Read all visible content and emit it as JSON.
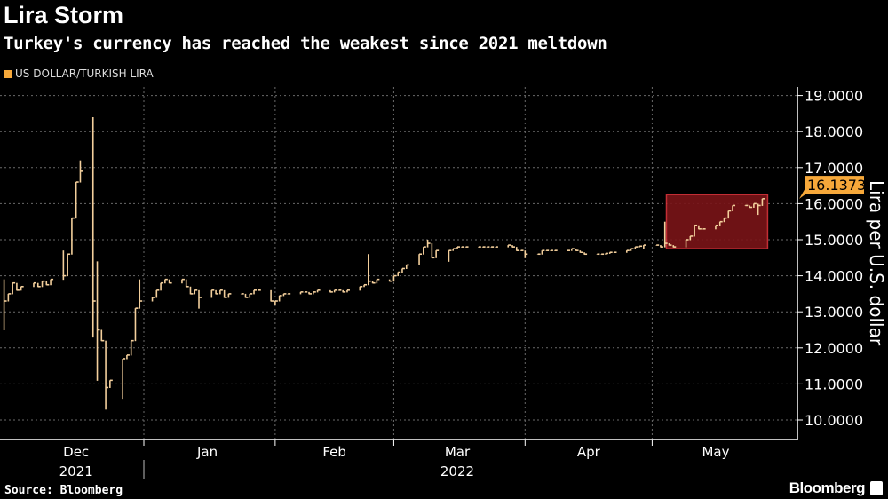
{
  "chart_data": {
    "type": "bar",
    "subtype": "ohlc",
    "title": "Lira Storm",
    "subtitle": "Turkey's currency has reached the weakest since 2021 meltdown",
    "legend": [
      "US DOLLAR/TURKISH LIRA"
    ],
    "legend_placement": "top-left",
    "ylabel": "Lira per U.S. dollar",
    "ylim": [
      9.75,
      19.25
    ],
    "yticks": [
      "10.0000",
      "11.0000",
      "12.0000",
      "13.0000",
      "14.0000",
      "15.0000",
      "16.0000",
      "17.0000",
      "18.0000",
      "19.0000"
    ],
    "ytick_values": [
      10,
      11,
      12,
      13,
      14,
      15,
      16,
      17,
      18,
      19
    ],
    "x_start_date": "2021-11-29",
    "x_end_date": "2022-05-27",
    "xticks": [
      {
        "label": "Dec",
        "date": "2021-12-16"
      },
      {
        "label": "Jan",
        "date": "2022-01-16"
      },
      {
        "label": "Feb",
        "date": "2022-02-15"
      },
      {
        "label": "Mar",
        "date": "2022-03-16"
      },
      {
        "label": "Apr",
        "date": "2022-04-16"
      },
      {
        "label": "May",
        "date": "2022-05-16"
      }
    ],
    "year_labels": [
      {
        "label": "2021",
        "date": "2021-12-16"
      },
      {
        "label": "2022",
        "date": "2022-03-16"
      }
    ],
    "month_boundaries": [
      "2022-01-01",
      "2022-02-01",
      "2022-03-01",
      "2022-04-01",
      "2022-05-01"
    ],
    "grid": true,
    "series_note": "weekday closes starting x_start_date",
    "closes": [
      13.3,
      13.5,
      13.8,
      13.6,
      13.7,
      13.8,
      13.7,
      13.85,
      13.75,
      13.9,
      14.0,
      14.6,
      15.6,
      16.6,
      16.9,
      13.3,
      12.5,
      12.2,
      10.9,
      11.1,
      11.7,
      11.8,
      12.2,
      13.1,
      13.3,
      13.4,
      13.6,
      13.8,
      13.9,
      13.8,
      13.9,
      13.7,
      13.5,
      13.6,
      13.4,
      13.6,
      13.5,
      13.6,
      13.4,
      13.5,
      13.5,
      13.4,
      13.5,
      13.6,
      13.6,
      13.3,
      13.3,
      13.45,
      13.5,
      13.5,
      13.55,
      13.55,
      13.5,
      13.55,
      13.6,
      13.55,
      13.6,
      13.6,
      13.55,
      13.6,
      13.7,
      13.75,
      13.85,
      13.8,
      13.9,
      13.85,
      14.0,
      14.1,
      14.2,
      14.3,
      14.6,
      14.8,
      14.9,
      14.5,
      14.7,
      14.7,
      14.75,
      14.8,
      14.8,
      14.8,
      14.8,
      14.8,
      14.8,
      14.8,
      14.8,
      14.85,
      14.8,
      14.7,
      14.7,
      14.6,
      14.6,
      14.7,
      14.7,
      14.7,
      14.7,
      14.7,
      14.75,
      14.7,
      14.65,
      14.6,
      14.6,
      14.6,
      14.62,
      14.65,
      14.65,
      14.7,
      14.75,
      14.8,
      14.82,
      14.85,
      14.85,
      14.8,
      14.9,
      14.85,
      14.8,
      15.0,
      15.1,
      15.4,
      15.3,
      15.3,
      15.4,
      15.5,
      15.6,
      15.8,
      15.95,
      15.95,
      15.9,
      16.0,
      15.95,
      16.1373
    ],
    "extremes": [
      {
        "i": 0,
        "h": 13.9,
        "l": 12.5
      },
      {
        "i": 10,
        "h": 14.7
      },
      {
        "i": 14,
        "h": 17.2
      },
      {
        "i": 15,
        "h": 18.4,
        "l": 12.3
      },
      {
        "i": 16,
        "h": 14.4,
        "l": 11.1
      },
      {
        "i": 18,
        "l": 10.3
      },
      {
        "i": 20,
        "l": 10.6
      },
      {
        "i": 24,
        "h": 13.9
      },
      {
        "i": 34,
        "l": 13.1
      },
      {
        "i": 46,
        "l": 13.2
      },
      {
        "i": 62,
        "h": 14.6
      },
      {
        "i": 72,
        "h": 15.0
      },
      {
        "i": 75,
        "l": 14.4
      },
      {
        "i": 89,
        "l": 14.5
      },
      {
        "i": 109,
        "l": 14.75
      },
      {
        "i": 112,
        "h": 15.5
      },
      {
        "i": 128,
        "l": 15.7
      }
    ],
    "last_value_label": "16.1373",
    "highlight": {
      "from_index": 113,
      "to_index": 130,
      "y_range": [
        14.75,
        16.25
      ]
    },
    "colors": {
      "series": "#f3cf9c",
      "last_value": "#f6a83a",
      "highlight": "#7a1418",
      "highlight_border": "#d8343b"
    }
  },
  "footer": {
    "source": "Source: Bloomberg",
    "brand": "Bloomberg"
  }
}
